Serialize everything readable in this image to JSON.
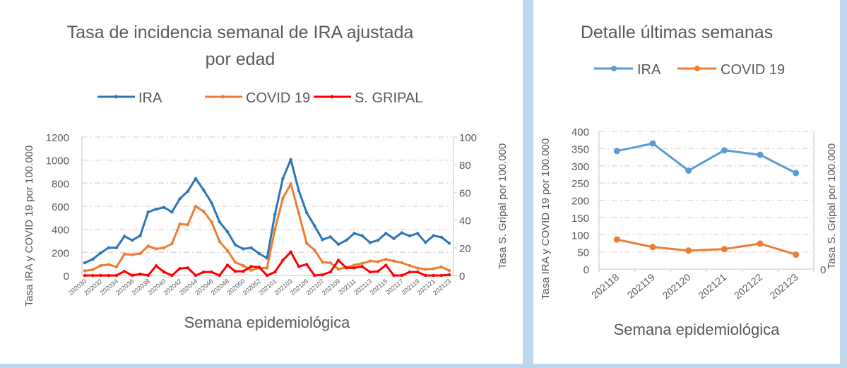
{
  "chart_data": [
    {
      "type": "line",
      "title": "Tasa de incidencia semanal  de IRA ajustada por edad",
      "title_lines": [
        "Tasa de incidencia semanal  de IRA ajustada",
        "por edad"
      ],
      "xlabel": "Semana epidemiológica",
      "ylabel": "Tasa IRA y COVID 19 por 100.000",
      "y2label": "Tasa S. Gripal por 100.000",
      "ylim": [
        0,
        1200
      ],
      "y2lim": [
        0,
        100
      ],
      "yticks": [
        "0",
        "200",
        "400",
        "600",
        "800",
        "1000",
        "1200"
      ],
      "y2ticks": [
        "0",
        "20",
        "40",
        "60",
        "80",
        "100"
      ],
      "grid": true,
      "legend_position": "top",
      "x": [
        "202030",
        "202031",
        "202032",
        "202033",
        "202034",
        "202035",
        "202036",
        "202037",
        "202038",
        "202039",
        "202040",
        "202041",
        "202042",
        "202043",
        "202044",
        "202045",
        "202046",
        "202047",
        "202048",
        "202049",
        "202050",
        "202051",
        "202052",
        "202053",
        "202101",
        "202102",
        "202103",
        "202104",
        "202105",
        "202106",
        "202107",
        "202108",
        "202109",
        "202110",
        "202111",
        "202112",
        "202113",
        "202114",
        "202115",
        "202116",
        "202117",
        "202118",
        "202119",
        "202120",
        "202121",
        "202122",
        "202123"
      ],
      "xtick_labels": [
        "202030",
        "202032",
        "202034",
        "202036",
        "202038",
        "202040",
        "202042",
        "202044",
        "202046",
        "202048",
        "202050",
        "202052",
        "202101",
        "202103",
        "202105",
        "202107",
        "202109",
        "202111",
        "202113",
        "202115",
        "202117",
        "202119",
        "202121",
        "202123"
      ],
      "series": [
        {
          "name": "IRA",
          "axis": "left",
          "color": "#2e75b6",
          "values": [
            110,
            140,
            195,
            240,
            240,
            340,
            305,
            345,
            550,
            575,
            590,
            550,
            665,
            730,
            840,
            740,
            630,
            465,
            380,
            265,
            230,
            240,
            190,
            150,
            530,
            840,
            1005,
            735,
            545,
            430,
            310,
            335,
            270,
            305,
            365,
            345,
            285,
            305,
            365,
            320,
            370,
            343,
            365,
            286,
            345,
            332,
            279
          ]
        },
        {
          "name": "COVID 19",
          "axis": "left",
          "color": "#ed7d31",
          "values": [
            40,
            50,
            85,
            95,
            75,
            185,
            180,
            190,
            255,
            230,
            240,
            275,
            445,
            440,
            600,
            555,
            465,
            295,
            215,
            115,
            85,
            45,
            65,
            65,
            400,
            670,
            795,
            540,
            280,
            220,
            115,
            110,
            55,
            70,
            90,
            105,
            125,
            120,
            140,
            125,
            110,
            86,
            64,
            54,
            58,
            74,
            42
          ]
        },
        {
          "name": "S. GRIPAL",
          "axis": "right",
          "color": "#ff0000",
          "values": [
            0,
            0,
            0,
            0,
            0,
            3,
            0,
            1,
            0,
            7,
            2.5,
            0,
            5,
            5.5,
            0,
            2.5,
            2.5,
            0,
            7.5,
            3,
            3,
            6.5,
            6,
            0,
            2.5,
            11,
            17,
            6.5,
            8,
            0,
            0.5,
            2.5,
            11,
            5.5,
            5.5,
            6.5,
            2.5,
            3,
            7.5,
            0,
            0,
            2.5,
            2.5,
            0,
            0,
            0,
            0.5
          ]
        }
      ]
    },
    {
      "type": "line",
      "title": "Detalle últimas semanas",
      "xlabel": "Semana epidemiológica",
      "ylabel": "Tasa IRA y COVID 19 por 100.000",
      "y2label": "Tasa S. Gripal por 100.000",
      "ylim": [
        0,
        400
      ],
      "yticks": [
        "0",
        "50",
        "100",
        "150",
        "200",
        "250",
        "300",
        "350",
        "400"
      ],
      "y2ticks": [
        "0"
      ],
      "grid": true,
      "legend_position": "top",
      "categories": [
        "202118",
        "202119",
        "202120",
        "202121",
        "202122",
        "202123"
      ],
      "series": [
        {
          "name": "IRA",
          "axis": "left",
          "color": "#5b9bd5",
          "values": [
            343,
            365,
            286,
            345,
            332,
            279
          ]
        },
        {
          "name": "COVID 19",
          "axis": "left",
          "color": "#ed7d31",
          "values": [
            86,
            64,
            54,
            58,
            74,
            42
          ]
        }
      ]
    }
  ]
}
